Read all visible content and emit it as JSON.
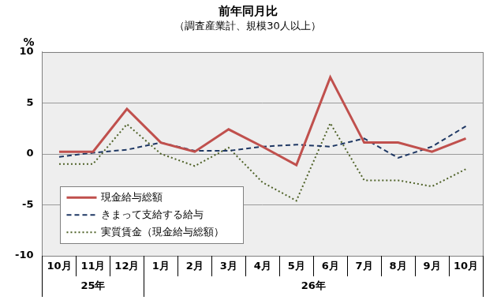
{
  "chart_data": {
    "type": "line",
    "title": "前年同月比",
    "subtitle": "（調査産業計、規模30人以上）",
    "y_label": "%",
    "categories": [
      "10月",
      "11月",
      "12月",
      "1月",
      "2月",
      "3月",
      "4月",
      "5月",
      "6月",
      "7月",
      "8月",
      "9月",
      "10月"
    ],
    "category_groups": [
      "25年",
      "25年",
      "25年",
      "26年",
      "26年",
      "26年",
      "26年",
      "26年",
      "26年",
      "26年",
      "26年",
      "26年",
      "26年"
    ],
    "series": [
      {
        "name": "現金給与総額",
        "color": "#c0504d",
        "line_style": "solid",
        "values": [
          0.2,
          0.2,
          4.4,
          1.1,
          0.2,
          2.4,
          0.7,
          -1.1,
          7.5,
          1.1,
          1.1,
          0.2,
          1.5
        ]
      },
      {
        "name": "きまって支給する給与",
        "color": "#1f3864",
        "line_style": "dashed",
        "values": [
          -0.3,
          0.1,
          0.4,
          1.1,
          0.3,
          0.3,
          0.7,
          0.9,
          0.7,
          1.5,
          -0.4,
          0.7,
          2.7
        ]
      },
      {
        "name": "実質賃金（現金給与総額）",
        "color": "#4f6228",
        "line_style": "dotted",
        "values": [
          -1.0,
          -1.0,
          2.9,
          0.0,
          -1.2,
          0.6,
          -2.8,
          -4.6,
          3.0,
          -2.6,
          -2.6,
          -3.2,
          -1.5
        ]
      }
    ],
    "ylim": [
      -10,
      10
    ],
    "yticks": [
      -10,
      -5,
      0,
      5,
      10
    ],
    "grid": true,
    "legend": "lower left"
  }
}
